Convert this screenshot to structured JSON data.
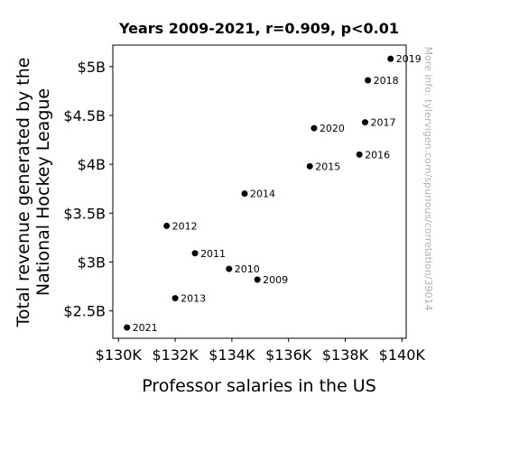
{
  "chart_data": {
    "type": "scatter",
    "title": "Years 2009-2021, r=0.909, p<0.01",
    "xlabel": "Professor salaries in the US",
    "ylabel_lines": [
      "Total revenue generated by the",
      "National Hockey League"
    ],
    "x_ticks": [
      {
        "value": 130000,
        "label": "$130K"
      },
      {
        "value": 132000,
        "label": "$132K"
      },
      {
        "value": 134000,
        "label": "$134K"
      },
      {
        "value": 136000,
        "label": "$136K"
      },
      {
        "value": 138000,
        "label": "$138K"
      },
      {
        "value": 140000,
        "label": "$140K"
      }
    ],
    "y_ticks": [
      {
        "value": 2.5,
        "label": "$2.5B"
      },
      {
        "value": 3.0,
        "label": "$3B"
      },
      {
        "value": 3.5,
        "label": "$3.5B"
      },
      {
        "value": 4.0,
        "label": "$4B"
      },
      {
        "value": 4.5,
        "label": "$4.5B"
      },
      {
        "value": 5.0,
        "label": "$5B"
      }
    ],
    "xlim": [
      129800,
      140150
    ],
    "ylim": [
      2.22,
      5.22
    ],
    "grid": false,
    "points": [
      {
        "label": "2009",
        "x": 134900,
        "y": 2.82
      },
      {
        "label": "2010",
        "x": 133900,
        "y": 2.93
      },
      {
        "label": "2011",
        "x": 132700,
        "y": 3.09
      },
      {
        "label": "2012",
        "x": 131700,
        "y": 3.37
      },
      {
        "label": "2013",
        "x": 132000,
        "y": 2.63
      },
      {
        "label": "2014",
        "x": 134450,
        "y": 3.7
      },
      {
        "label": "2015",
        "x": 136750,
        "y": 3.98
      },
      {
        "label": "2016",
        "x": 138500,
        "y": 4.1
      },
      {
        "label": "2017",
        "x": 138700,
        "y": 4.43
      },
      {
        "label": "2018",
        "x": 138800,
        "y": 4.86
      },
      {
        "label": "2019",
        "x": 139600,
        "y": 5.08
      },
      {
        "label": "2020",
        "x": 136900,
        "y": 4.37
      },
      {
        "label": "2021",
        "x": 130300,
        "y": 2.33
      }
    ],
    "watermark": "More info: tylervigen.com/spurious/correlation/39014",
    "marker_color": "#000000"
  }
}
